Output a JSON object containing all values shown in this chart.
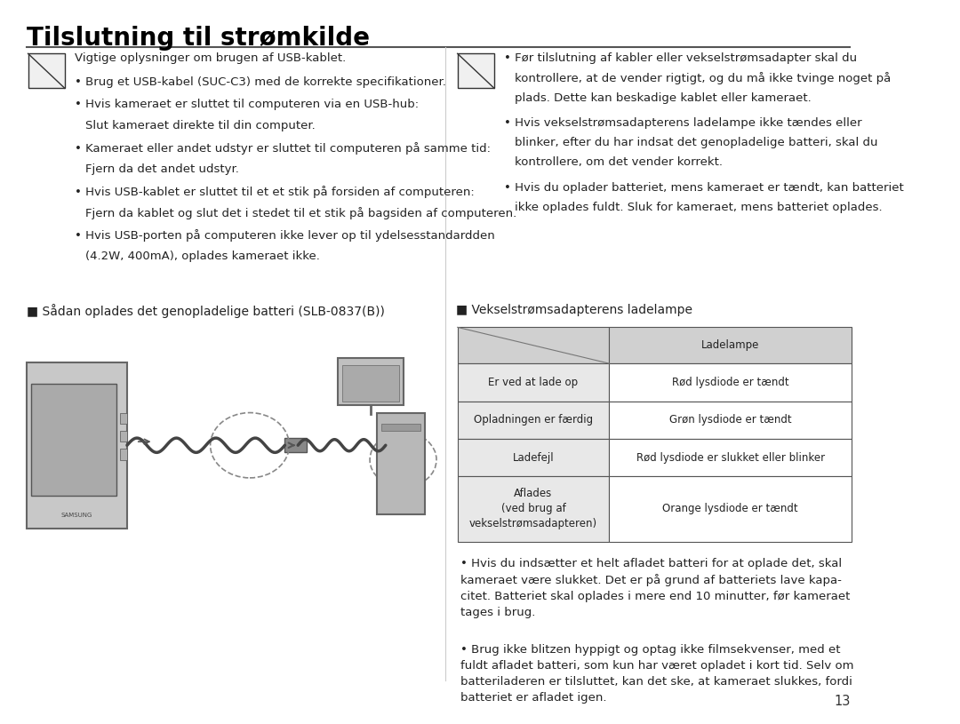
{
  "title": "Tilslutning til strømkilde",
  "background_color": "#ffffff",
  "title_fontsize": 20,
  "title_color": "#000000",
  "left_note_header": "Vigtige oplysninger om brugen af USB-kablet.",
  "left_note_bullets": [
    "Brug et USB-kabel (SUC-C3) med de korrekte specifikationer.",
    "Hvis kameraet er sluttet til computeren via en USB-hub:\n  Slut kameraet direkte til din computer.",
    "Kameraet eller andet udstyr er sluttet til computeren på samme tid:\n  Fjern da det andet udstyr.",
    "Hvis USB-kablet er sluttet til et et stik på forsiden af computeren:\n  Fjern da kablet og slut det i stedet til et stik på bagsiden af computeren.",
    "Hvis USB-porten på computeren ikke lever op til ydelsesstandardden\n  (4.2W, 400mA), oplades kameraet ikke."
  ],
  "right_note_bullets": [
    "Før tilslutning af kabler eller vekselstrømsadapter skal du\nkontrollere, at de vender rigtigt, og du må ikke tvinge noget på\nplads. Dette kan beskadige kablet eller kameraet.",
    "Hvis vekselstrømsadapterens ladelampe ikke tændes eller\nblinker, efter du har indsat det genopladelige batteri, skal du\nkontrollere, om det vender korrekt.",
    "Hvis du oplader batteriet, mens kameraet er tændt, kan batteriet\nikke oplades fuldt. Sluk for kameraet, mens batteriet oplades."
  ],
  "section2_label": "■ Sådan oplades det genopladelige batteri (SLB-0837(B))",
  "section3_label": "■ Vekselstrømsadapterens ladelampe",
  "table_header_right": "Ladelampe",
  "table_rows": [
    [
      "Er ved at lade op",
      "Rød lysdiode er tændt"
    ],
    [
      "Opladningen er færdig",
      "Grøn lysdiode er tændt"
    ],
    [
      "Ladefejl",
      "Rød lysdiode er slukket eller blinker"
    ],
    [
      "Aflades\n(ved brug af\nvekselstrømsadapteren)",
      "Orange lysdiode er tændt"
    ]
  ],
  "table_header_bg": "#d0d0d0",
  "table_row_bg": "#e8e8e8",
  "table_border_color": "#555555",
  "bottom_bullets1": "Hvis du indsætter et helt afladet batteri for at oplade det, skal\nkameraet være slukket. Det er på grund af batteriets lave kapa-\ncitet. Batteriet skal oplades i mere end 10 minutter, før kameraet\ntages i brug.",
  "bottom_bullets2": "Brug ikke blitzen hyppigt og optag ikke filmsekvenser, med et\nfuldt afladet batteri, som kun har været opladet i kort tid. Selv om\nbatteriladeren er tilsluttet, kan det ske, at kameraet slukkes, fordi\nbatteriet er afladet igen.",
  "page_number": "13",
  "font_size_body": 9.5,
  "font_size_small": 8.5
}
